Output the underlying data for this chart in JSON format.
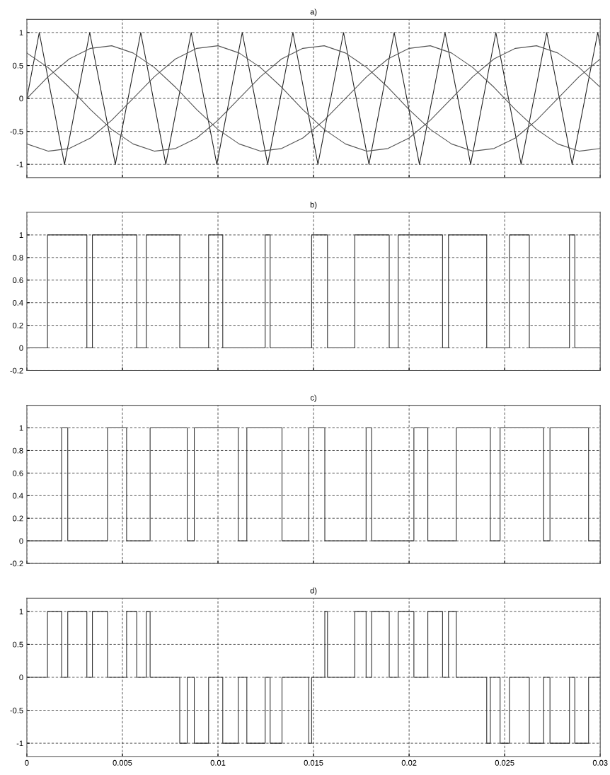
{
  "chart_data": [
    {
      "type": "line",
      "title": "a)",
      "xlim": [
        0,
        0.03
      ],
      "xticks": [
        0,
        0.005,
        0.01,
        0.015,
        0.02,
        0.025,
        0.03
      ],
      "ylim": [
        -1.2,
        1.2
      ],
      "yticks": [
        -1,
        -0.5,
        0,
        0.5,
        1
      ],
      "grid": true,
      "tick_labels": "y",
      "line_style": "solid",
      "marker": "none",
      "series": [
        {
          "color": "#222222",
          "x": [
            0,
            0.00065,
            0.00197,
            0.00329,
            0.00463,
            0.00596,
            0.00727,
            0.0086,
            0.00994,
            0.01127,
            0.0126,
            0.01392,
            0.01523,
            0.01657,
            0.0179,
            0.01922,
            0.02054,
            0.02188,
            0.02322,
            0.02454,
            0.02586,
            0.0272,
            0.02853,
            0.02987,
            0.03
          ],
          "values": [
            0,
            1,
            -1,
            1,
            -1,
            1,
            -1,
            1,
            -1,
            1,
            -1,
            1,
            -1,
            1,
            -1,
            1,
            -1,
            1,
            -1,
            1,
            -1,
            1,
            -1,
            1,
            0.8
          ]
        },
        {
          "color": "#555555",
          "x": [
            0,
            0.00111,
            0.00222,
            0.00333,
            0.00444,
            0.00556,
            0.00667,
            0.00778,
            0.00889,
            0.01,
            0.01111,
            0.01222,
            0.01333,
            0.01444,
            0.01556,
            0.01667,
            0.01778,
            0.01889,
            0.02,
            0.02111,
            0.02222,
            0.02333,
            0.02444,
            0.02556,
            0.02667,
            0.02778,
            0.02889,
            0.03
          ],
          "values": [
            0,
            0.33,
            0.6,
            0.76,
            0.8,
            0.69,
            0.47,
            0.17,
            -0.17,
            -0.47,
            -0.69,
            -0.8,
            -0.76,
            -0.6,
            -0.33,
            0,
            0.33,
            0.6,
            0.76,
            0.8,
            0.69,
            0.47,
            0.17,
            -0.17,
            -0.47,
            -0.69,
            -0.8,
            -0.76
          ]
        },
        {
          "color": "#555555",
          "x": [
            0,
            0.00111,
            0.00222,
            0.00333,
            0.00444,
            0.00556,
            0.00667,
            0.00778,
            0.00889,
            0.01,
            0.01111,
            0.01222,
            0.01333,
            0.01444,
            0.01556,
            0.01667,
            0.01778,
            0.01889,
            0.02,
            0.02111,
            0.02222,
            0.02333,
            0.02444,
            0.02556,
            0.02667,
            0.02778,
            0.02889,
            0.03
          ],
          "values": [
            -0.69,
            -0.8,
            -0.76,
            -0.6,
            -0.33,
            0,
            0.33,
            0.6,
            0.76,
            0.8,
            0.69,
            0.47,
            0.17,
            -0.17,
            -0.47,
            -0.69,
            -0.8,
            -0.76,
            -0.6,
            -0.33,
            0,
            0.33,
            0.6,
            0.76,
            0.8,
            0.69,
            0.47,
            0.17
          ]
        },
        {
          "color": "#555555",
          "x": [
            0,
            0.00111,
            0.00222,
            0.00333,
            0.00444,
            0.00556,
            0.00667,
            0.00778,
            0.00889,
            0.01,
            0.01111,
            0.01222,
            0.01333,
            0.01444,
            0.01556,
            0.01667,
            0.01778,
            0.01889,
            0.02,
            0.02111,
            0.02222,
            0.02333,
            0.02444,
            0.02556,
            0.02667,
            0.02778,
            0.02889,
            0.03
          ],
          "values": [
            0.69,
            0.47,
            0.17,
            -0.17,
            -0.47,
            -0.69,
            -0.8,
            -0.76,
            -0.6,
            -0.33,
            0,
            0.33,
            0.6,
            0.76,
            0.8,
            0.69,
            0.47,
            0.17,
            -0.17,
            -0.47,
            -0.69,
            -0.8,
            -0.76,
            -0.6,
            -0.33,
            0,
            0.33,
            0.6
          ]
        }
      ]
    },
    {
      "type": "step",
      "title": "b)",
      "xlim": [
        0,
        0.03
      ],
      "xticks": [
        0,
        0.005,
        0.01,
        0.015,
        0.02,
        0.025,
        0.03
      ],
      "ylim": [
        -0.2,
        1.2
      ],
      "yticks": [
        -0.2,
        0,
        0.2,
        0.4,
        0.6,
        0.8,
        1
      ],
      "grid": true,
      "tick_labels": "y",
      "line_style": "solid",
      "marker": "none",
      "series": [
        {
          "color": "#333333",
          "x": [
            0,
            0.00108,
            0.00314,
            0.00343,
            0.00575,
            0.00625,
            0.008,
            0.00951,
            0.01025,
            0.01247,
            0.01273,
            0.0149,
            0.01573,
            0.01716,
            0.01896,
            0.01943,
            0.02175,
            0.02206,
            0.02406,
            0.02525,
            0.02629,
            0.02839,
            0.02867,
            0.03
          ],
          "values": [
            0,
            1,
            0,
            1,
            0,
            1,
            0,
            1,
            0,
            1,
            0,
            1,
            0,
            1,
            0,
            1,
            0,
            1,
            0,
            1,
            0,
            1,
            0,
            0
          ]
        }
      ]
    },
    {
      "type": "step",
      "title": "c)",
      "xlim": [
        0,
        0.03
      ],
      "xticks": [
        0,
        0.005,
        0.01,
        0.015,
        0.02,
        0.025,
        0.03
      ],
      "ylim": [
        -0.2,
        1.2
      ],
      "yticks": [
        -0.2,
        0,
        0.2,
        0.4,
        0.6,
        0.8,
        1
      ],
      "grid": true,
      "tick_labels": "y",
      "line_style": "solid",
      "marker": "none",
      "series": [
        {
          "color": "#333333",
          "x": [
            0,
            0.00182,
            0.00214,
            0.00422,
            0.00522,
            0.00645,
            0.00839,
            0.00876,
            0.01106,
            0.01151,
            0.01335,
            0.01475,
            0.01559,
            0.01775,
            0.01804,
            0.02025,
            0.02098,
            0.02247,
            0.02425,
            0.02476,
            0.02704,
            0.02737,
            0.02939,
            0.03
          ],
          "values": [
            0,
            1,
            0,
            1,
            0,
            1,
            0,
            1,
            0,
            1,
            0,
            1,
            0,
            1,
            0,
            1,
            0,
            1,
            0,
            1,
            0,
            1,
            0,
            0
          ]
        }
      ]
    },
    {
      "type": "step",
      "title": "d)",
      "xlim": [
        0,
        0.03
      ],
      "xticks": [
        0,
        0.005,
        0.01,
        0.015,
        0.02,
        0.025,
        0.03
      ],
      "ylim": [
        -1.2,
        1.2
      ],
      "yticks": [
        -1,
        -0.5,
        0,
        0.5,
        1
      ],
      "grid": true,
      "line_style": "solid",
      "marker": "none",
      "series": [
        {
          "color": "#333333",
          "x": [
            0,
            0.00108,
            0.00182,
            0.00214,
            0.00314,
            0.00343,
            0.00422,
            0.00522,
            0.00575,
            0.00625,
            0.00645,
            0.008,
            0.00839,
            0.00876,
            0.00951,
            0.01025,
            0.01106,
            0.01151,
            0.01247,
            0.01273,
            0.01335,
            0.01475,
            0.0149,
            0.01559,
            0.01573,
            0.01716,
            0.01775,
            0.01804,
            0.01896,
            0.01943,
            0.02025,
            0.02098,
            0.02175,
            0.02206,
            0.02247,
            0.02406,
            0.02425,
            0.02476,
            0.02525,
            0.02629,
            0.02704,
            0.02737,
            0.02839,
            0.02867,
            0.02939,
            0.03
          ],
          "values": [
            0,
            1,
            0,
            1,
            0,
            1,
            0,
            1,
            0,
            1,
            0,
            -1,
            0,
            -1,
            0,
            -1,
            0,
            -1,
            0,
            -1,
            0,
            -1,
            0,
            1,
            0,
            1,
            0,
            1,
            0,
            1,
            0,
            1,
            0,
            1,
            0,
            -1,
            0,
            -1,
            0,
            -1,
            0,
            -1,
            0,
            -1,
            0,
            0
          ]
        }
      ]
    }
  ]
}
